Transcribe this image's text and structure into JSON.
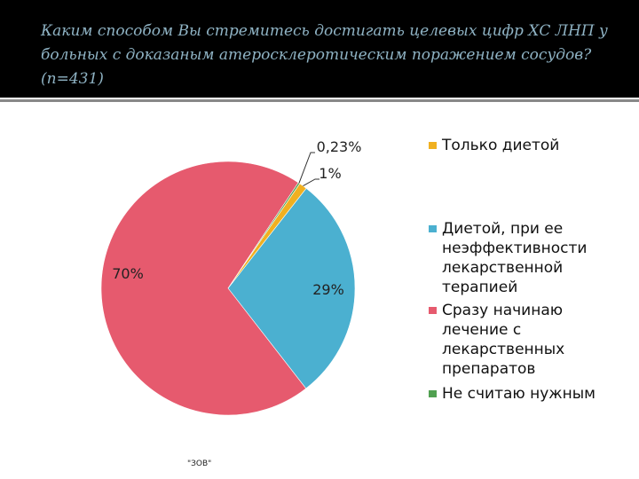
{
  "title": "Каким способом Вы стремитесь достигать целевых цифр ХС ЛНП у больных с  доказаным атеросклеротическим поражением сосудов? (n=431)",
  "footer": "\"ЗОВ\"",
  "chart_data": {
    "type": "pie",
    "title": "Каким способом Вы стремитесь достигать целевых цифр ХС ЛНП у больных с доказаным атеросклеротическим поражением сосудов? (n=431)",
    "legend_position": "right",
    "slices": [
      {
        "name": "Только диетой",
        "value": 1,
        "label": "1%",
        "color": "#f0b020"
      },
      {
        "name": "Диетой, при ее неэффективности лекарственной терапией",
        "value": 29,
        "label": "29%",
        "color": "#4bb0d0"
      },
      {
        "name": "Сразу начинаю лечение с лекарственных препаратов",
        "value": 70,
        "label": "70%",
        "color": "#e65a6e"
      },
      {
        "name": "Не считаю нужным",
        "value": 0.23,
        "label": "0,23%",
        "color": "#50a050"
      }
    ]
  }
}
